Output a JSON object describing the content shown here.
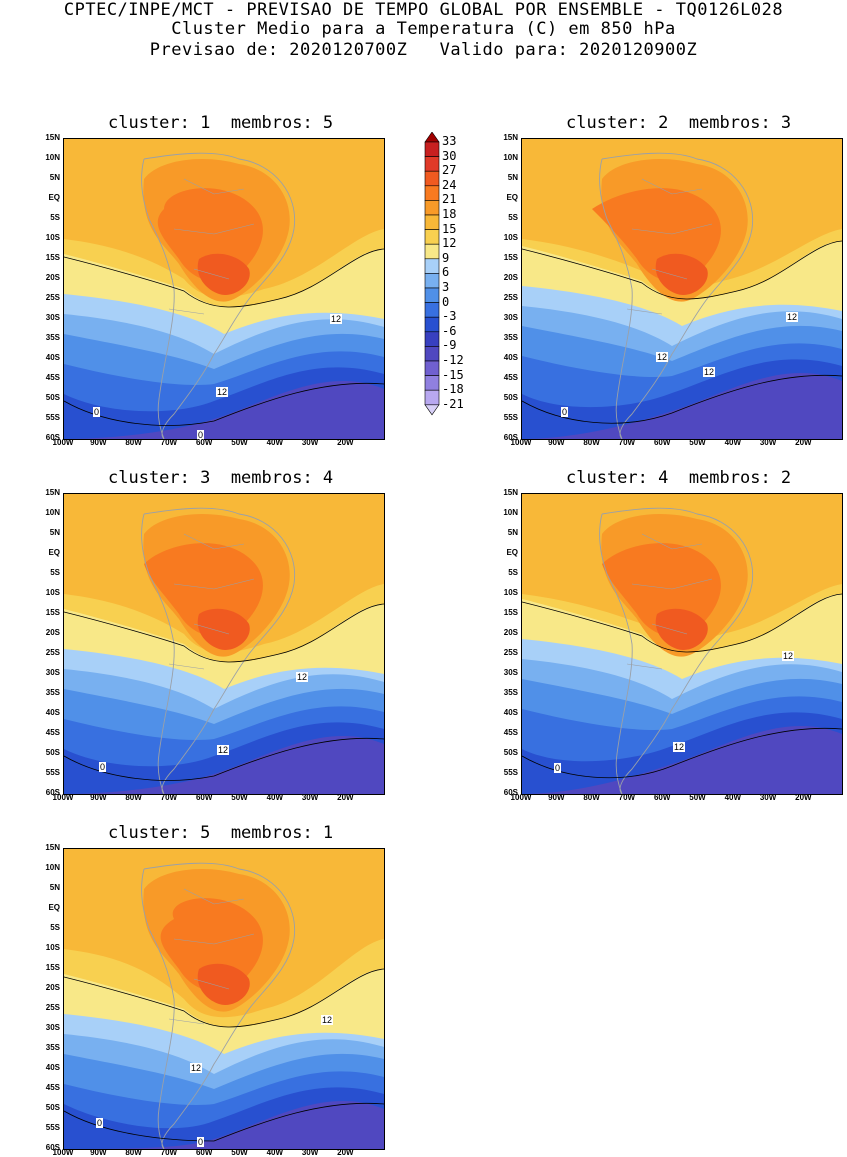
{
  "header": {
    "line1": "CPTEC/INPE/MCT - PREVISAO DE TEMPO GLOBAL POR ENSEMBLE - TQ0126L028",
    "line2": "Cluster Medio para a Temperatura (C) em 850 hPa",
    "line3": "Previsao de: 2020120700Z   Valido para: 2020120900Z"
  },
  "panels": [
    {
      "title": "cluster: 1  membros: 5",
      "label12a": "12",
      "label12b": "12",
      "label0a": "0",
      "label0b": "0"
    },
    {
      "title": "cluster: 2  membros: 3",
      "label12a": "12",
      "label12b": "12",
      "label12c": "12",
      "label0a": "0"
    },
    {
      "title": "cluster: 3  membros: 4",
      "label12a": "12",
      "label12b": "12",
      "label0a": "0"
    },
    {
      "title": "cluster: 4  membros: 2",
      "label12a": "12",
      "label12b": "12",
      "label0a": "0"
    },
    {
      "title": "cluster: 5  membros: 1",
      "label12a": "12",
      "label12b": "12",
      "label0a": "0",
      "label0b": "0"
    }
  ],
  "lat_labels": [
    "15N",
    "10N",
    "5N",
    "EQ",
    "5S",
    "10S",
    "15S",
    "20S",
    "25S",
    "30S",
    "35S",
    "40S",
    "45S",
    "50S",
    "55S",
    "60S"
  ],
  "lon_labels": [
    "100W",
    "90W",
    "80W",
    "70W",
    "60W",
    "50W",
    "40W",
    "30W",
    "20W"
  ],
  "colorbar": {
    "labels": [
      "33",
      "30",
      "27",
      "24",
      "21",
      "18",
      "15",
      "12",
      "9",
      "6",
      "3",
      "0",
      "-3",
      "-6",
      "-9",
      "-12",
      "-15",
      "-18",
      "-21"
    ],
    "colors": [
      "#a00000",
      "#c82020",
      "#e03a28",
      "#f05a20",
      "#f87a20",
      "#f89a28",
      "#f8b838",
      "#f8d050",
      "#f8e888",
      "#a8d0f8",
      "#78b0f0",
      "#5090e8",
      "#3870e0",
      "#2850d0",
      "#3840c0",
      "#5048c0",
      "#7060d0",
      "#9080e0",
      "#b8a8f0",
      "#d8d0f8"
    ]
  }
}
